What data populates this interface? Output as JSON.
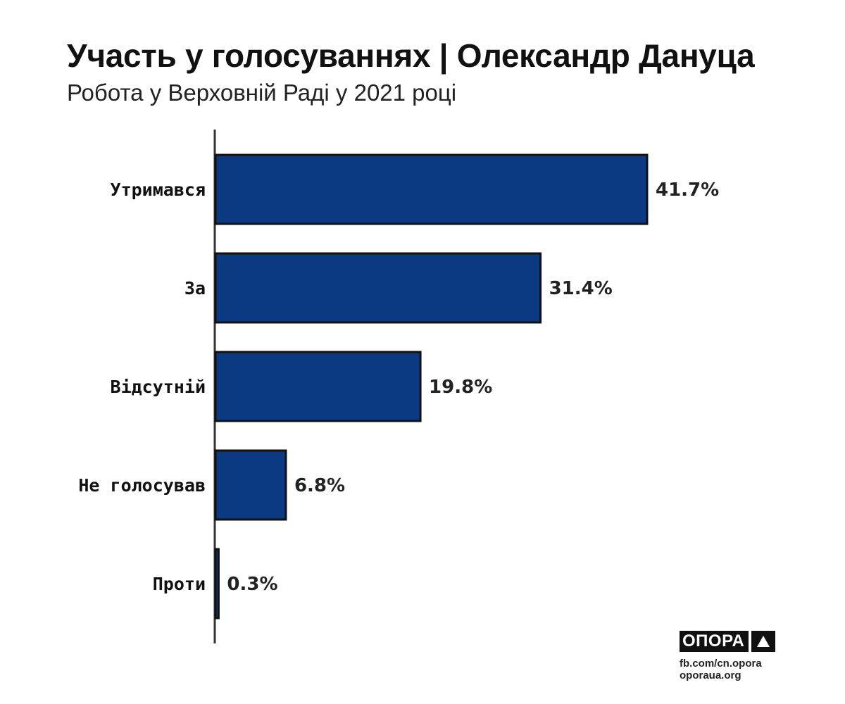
{
  "title": "Участь у голосуваннях | Олександр Дануца",
  "subtitle": "Робота у Верховній Раді у 2021 році",
  "colors": {
    "bar": "#0b3a82",
    "bar_outline": "#111111",
    "axis": "#333333",
    "background": "#ffffff"
  },
  "chart_data": {
    "type": "bar",
    "orientation": "horizontal",
    "title": "Участь у голосуваннях | Олександр Дануца",
    "subtitle": "Робота у Верховній Раді у 2021 році",
    "categories": [
      "Утримався",
      "За",
      "Відсутній",
      "Не голосував",
      "Проти"
    ],
    "values": [
      41.7,
      31.4,
      19.8,
      6.8,
      0.3
    ],
    "value_labels": [
      "41.7%",
      "31.4%",
      "19.8%",
      "6.8%",
      "0.3%"
    ],
    "unit": "%",
    "xlim": [
      0,
      45
    ],
    "grid": false,
    "legend": "none"
  },
  "logo": {
    "name": "ОПОРА",
    "icon": "triangle-icon",
    "url_lines": [
      "fb.com/cn.opora",
      "oporaua.org"
    ]
  }
}
